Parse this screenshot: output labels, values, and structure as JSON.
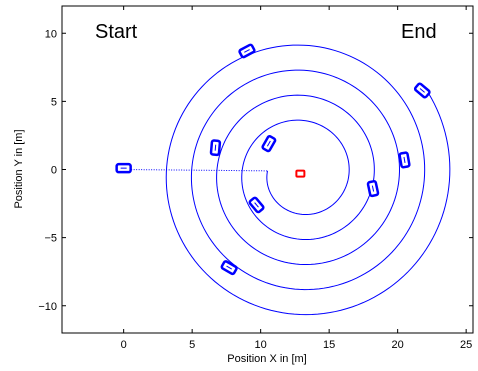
{
  "chart_data": {
    "type": "line",
    "title": "",
    "xlabel": "Position X in [m]",
    "ylabel": "Position Y in [m]",
    "xlim": [
      -4.5,
      25.5
    ],
    "ylim": [
      -12,
      12
    ],
    "xticks": [
      0,
      5,
      10,
      15,
      20,
      25
    ],
    "yticks": [
      -10,
      -5,
      0,
      5,
      10
    ],
    "xtick_labels": [
      "0",
      "5",
      "10",
      "15",
      "20",
      "25"
    ],
    "ytick_labels": [
      "−10",
      "−5",
      "0",
      "5",
      "10"
    ],
    "grid": false,
    "annotations": [
      {
        "text": "Start",
        "x": -2,
        "y": 10
      },
      {
        "text": "End",
        "x": 21.5,
        "y": 10
      }
    ],
    "series": [
      {
        "kind": "dotted-line",
        "color": "#0000ff",
        "points": [
          [
            0,
            0
          ],
          [
            10.5,
            -0.1
          ]
        ]
      },
      {
        "kind": "spiral",
        "color": "#0000ff",
        "center": [
          13,
          -0.3
        ],
        "start": [
          10.5,
          -0.1
        ],
        "end": [
          22,
          6
        ],
        "revolutions": 4.9
      }
    ],
    "vehicles": [
      {
        "x": 0,
        "y": 0.1,
        "angle": 0,
        "color": "#0000ff"
      },
      {
        "x": 9,
        "y": 8.7,
        "angle": -28,
        "color": "#0000ff"
      },
      {
        "x": 21.8,
        "y": 5.8,
        "angle": 40,
        "color": "#0000ff"
      },
      {
        "x": 6.7,
        "y": 1.6,
        "angle": 95,
        "color": "#0000ff"
      },
      {
        "x": 10.6,
        "y": 1.9,
        "angle": 120,
        "color": "#0000ff"
      },
      {
        "x": 20.5,
        "y": 0.7,
        "angle": 80,
        "color": "#0000ff"
      },
      {
        "x": 18.2,
        "y": -1.4,
        "angle": 78,
        "color": "#0000ff"
      },
      {
        "x": 9.7,
        "y": -2.6,
        "angle": 50,
        "color": "#0000ff"
      },
      {
        "x": 7.7,
        "y": -7.2,
        "angle": 30,
        "color": "#0000ff"
      },
      {
        "x": 12.9,
        "y": -0.3,
        "angle": 0,
        "color": "#ff0000",
        "target": true
      }
    ]
  }
}
